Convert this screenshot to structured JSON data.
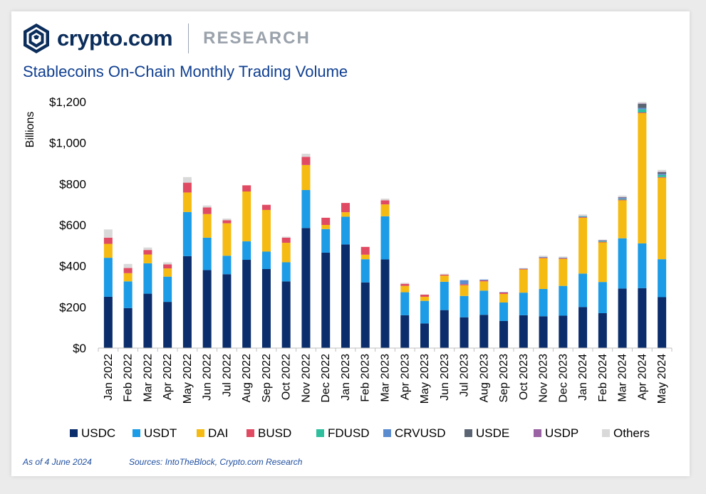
{
  "brand": {
    "name": "crypto.com",
    "section": "RESEARCH"
  },
  "title": "Stablecoins On-Chain Monthly Trading Volume",
  "footer": {
    "as_of": "As of 4 June 2024",
    "sources": "Sources: IntoTheBlock, Crypto.com Research"
  },
  "colors": {
    "USDC": "#0b2d6b",
    "USDT": "#1c9be6",
    "DAI": "#f5bb13",
    "BUSD": "#e04a62",
    "FDUSD": "#2fbf9e",
    "CRVUSD": "#5b8ccf",
    "USDE": "#5a6472",
    "USDP": "#9a63a3",
    "Others": "#d9d9d9"
  },
  "chart_data": {
    "type": "bar",
    "stacked": true,
    "ylabel": "Billions",
    "ylim": [
      0,
      1200
    ],
    "yticks": [
      0,
      200,
      400,
      600,
      800,
      1000,
      1200
    ],
    "ytick_labels": [
      "$0",
      "$200",
      "$400",
      "$600",
      "$800",
      "$1,000",
      "$1,200"
    ],
    "grid": false,
    "legend_position": "bottom",
    "categories": [
      "Jan 2022",
      "Feb 2022",
      "Mar 2022",
      "Apr 2022",
      "May 2022",
      "Jun 2022",
      "Jul 2022",
      "Aug 2022",
      "Sep 2022",
      "Oct 2022",
      "Nov 2022",
      "Dec 2022",
      "Jan 2023",
      "Feb 2023",
      "Mar 2023",
      "Apr 2023",
      "May 2023",
      "Jun 2023",
      "Jul 2023",
      "Aug 2023",
      "Sep 2023",
      "Oct 2023",
      "Nov 2023",
      "Dec 2023",
      "Jan 2024",
      "Feb 2024",
      "Mar 2024",
      "Apr 2024",
      "May 2024"
    ],
    "series": [
      {
        "name": "USDC",
        "values": [
          250,
          195,
          265,
          225,
          448,
          380,
          360,
          430,
          385,
          325,
          585,
          465,
          505,
          320,
          432,
          160,
          120,
          185,
          150,
          162,
          132,
          160,
          155,
          158,
          200,
          170,
          290,
          292,
          248
        ]
      },
      {
        "name": "USDT",
        "values": [
          190,
          130,
          148,
          123,
          215,
          158,
          90,
          90,
          85,
          93,
          185,
          115,
          135,
          113,
          210,
          112,
          110,
          138,
          104,
          118,
          90,
          110,
          133,
          145,
          163,
          152,
          245,
          218,
          185
        ]
      },
      {
        "name": "DAI",
        "values": [
          68,
          40,
          43,
          40,
          95,
          115,
          158,
          243,
          203,
          95,
          122,
          20,
          22,
          22,
          58,
          31,
          20,
          30,
          52,
          45,
          42,
          113,
          150,
          132,
          272,
          193,
          185,
          635,
          397
        ]
      },
      {
        "name": "BUSD",
        "values": [
          30,
          25,
          22,
          20,
          48,
          32,
          15,
          30,
          25,
          25,
          40,
          35,
          45,
          38,
          20,
          10,
          10,
          5,
          5,
          5,
          7,
          3,
          3,
          3,
          3,
          3,
          3,
          3,
          3
        ]
      },
      {
        "name": "FDUSD",
        "values": [
          0,
          0,
          0,
          0,
          0,
          0,
          0,
          0,
          0,
          0,
          0,
          0,
          0,
          0,
          0,
          0,
          0,
          0,
          0,
          0,
          0,
          0,
          0,
          0,
          2,
          3,
          3,
          15,
          10
        ]
      },
      {
        "name": "CRVUSD",
        "values": [
          0,
          0,
          0,
          0,
          0,
          0,
          0,
          0,
          0,
          0,
          0,
          0,
          0,
          0,
          0,
          0,
          0,
          0,
          20,
          4,
          2,
          2,
          3,
          3,
          3,
          3,
          5,
          7,
          6
        ]
      },
      {
        "name": "USDE",
        "values": [
          0,
          0,
          0,
          0,
          0,
          0,
          0,
          0,
          0,
          0,
          0,
          0,
          0,
          0,
          0,
          0,
          0,
          0,
          0,
          0,
          0,
          0,
          0,
          0,
          0,
          1,
          3,
          20,
          8
        ]
      },
      {
        "name": "USDP",
        "values": [
          0,
          0,
          0,
          0,
          0,
          0,
          0,
          0,
          0,
          0,
          0,
          0,
          0,
          0,
          0,
          0,
          0,
          0,
          0,
          0,
          0,
          0,
          0,
          0,
          0,
          1,
          1,
          2,
          1
        ]
      },
      {
        "name": "Others",
        "values": [
          40,
          20,
          12,
          10,
          27,
          10,
          8,
          0,
          0,
          5,
          15,
          0,
          0,
          0,
          8,
          5,
          2,
          4,
          0,
          0,
          0,
          2,
          6,
          5,
          8,
          2,
          8,
          7,
          10
        ]
      }
    ]
  }
}
